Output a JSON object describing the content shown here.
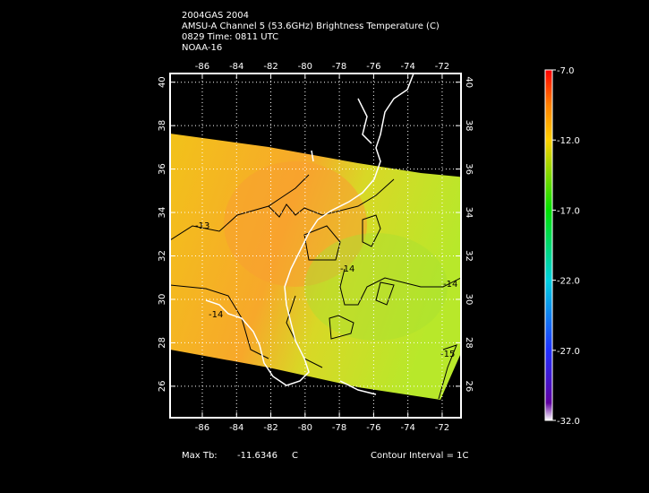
{
  "chart_data": {
    "type": "map",
    "title_lines": [
      "2004GAS 2004",
      "AMSU-A Channel 5 (53.6GHz) Brightness Temperature (C)",
      "0829 Time: 0811 UTC",
      "NOAA-16"
    ],
    "xlim": [
      -87.88,
      -70.9
    ],
    "xticks": [
      -86,
      -84,
      -82,
      -80,
      -78,
      -76,
      -74,
      -72
    ],
    "ylim": [
      24.55,
      40.4
    ],
    "yticks": [
      26,
      28,
      30,
      32,
      34,
      36,
      38,
      40
    ],
    "grid": true,
    "colorbar": {
      "lim": [
        -32,
        -7
      ],
      "ticks": [
        {
          "value": -7,
          "label": "-7.0"
        },
        {
          "value": -12,
          "label": "-12.0"
        },
        {
          "value": -17,
          "label": "-17.0"
        },
        {
          "value": -22,
          "label": "-22.0"
        },
        {
          "value": -27,
          "label": "-27.0"
        },
        {
          "value": -32,
          "label": "-32.0"
        }
      ]
    },
    "contour_labels": [
      "-13",
      "-14",
      "-14",
      "-14",
      "-15"
    ],
    "footer": {
      "max_label": "Max Tb:",
      "max_value": -11.6346,
      "max_unit": "C",
      "interval": "Contour Interval = 1C"
    }
  }
}
